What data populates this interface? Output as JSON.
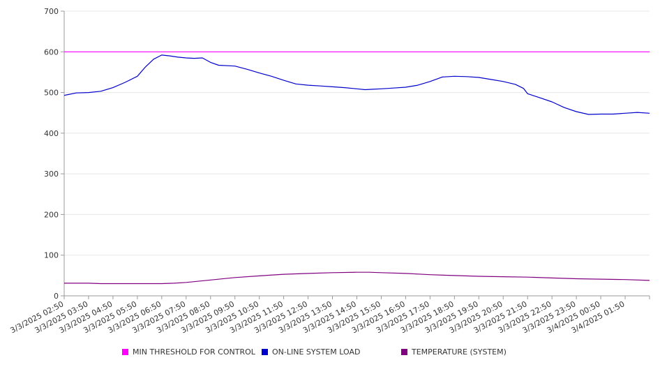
{
  "chart_data": {
    "type": "line",
    "title": "",
    "xlabel": "",
    "ylabel": "",
    "ylim": [
      0,
      700
    ],
    "y_ticks": [
      0,
      100,
      200,
      300,
      400,
      500,
      600,
      700
    ],
    "x_tick_labels": [
      "3/3/2025 02:50",
      "3/3/2025 03:50",
      "3/3/2025 04:50",
      "3/3/2025 05:50",
      "3/3/2025 06:50",
      "3/3/2025 07:50",
      "3/3/2025 08:50",
      "3/3/2025 09:50",
      "3/3/2025 10:50",
      "3/3/2025 11:50",
      "3/3/2025 12:50",
      "3/3/2025 13:50",
      "3/3/2025 14:50",
      "3/3/2025 15:50",
      "3/3/2025 16:50",
      "3/3/2025 17:50",
      "3/3/2025 18:50",
      "3/3/2025 19:50",
      "3/3/2025 20:50",
      "3/3/2025 21:50",
      "3/3/2025 22:50",
      "3/3/2025 23:50",
      "3/4/2025 00:50",
      "3/4/2025 01:50"
    ],
    "x_end": "3/4/2025 02:50",
    "grid": true,
    "legend_position": "bottom",
    "series": [
      {
        "name": "MIN THRESHOLD FOR CONTROL",
        "color": "#ff00ff",
        "points": [
          [
            "3/3/2025 02:50",
            600
          ],
          [
            "3/4/2025 02:50",
            600
          ]
        ]
      },
      {
        "name": "ON-LINE SYSTEM LOAD",
        "color": "#0000cc",
        "points": [
          [
            "3/3/2025 02:50",
            493
          ],
          [
            "3/3/2025 03:00",
            495
          ],
          [
            "3/3/2025 03:20",
            499
          ],
          [
            "3/3/2025 03:50",
            500
          ],
          [
            "3/3/2025 04:20",
            503
          ],
          [
            "3/3/2025 04:50",
            512
          ],
          [
            "3/3/2025 05:20",
            525
          ],
          [
            "3/3/2025 05:50",
            540
          ],
          [
            "3/3/2025 06:10",
            563
          ],
          [
            "3/3/2025 06:30",
            582
          ],
          [
            "3/3/2025 06:50",
            592
          ],
          [
            "3/3/2025 07:10",
            590
          ],
          [
            "3/3/2025 07:30",
            587
          ],
          [
            "3/3/2025 07:50",
            585
          ],
          [
            "3/3/2025 08:10",
            584
          ],
          [
            "3/3/2025 08:30",
            585
          ],
          [
            "3/3/2025 08:50",
            574
          ],
          [
            "3/3/2025 09:10",
            567
          ],
          [
            "3/3/2025 09:50",
            565
          ],
          [
            "3/3/2025 10:20",
            557
          ],
          [
            "3/3/2025 10:50",
            548
          ],
          [
            "3/3/2025 11:20",
            540
          ],
          [
            "3/3/2025 11:50",
            530
          ],
          [
            "3/3/2025 12:20",
            521
          ],
          [
            "3/3/2025 12:50",
            518
          ],
          [
            "3/3/2025 13:20",
            516
          ],
          [
            "3/3/2025 13:50",
            514
          ],
          [
            "3/3/2025 14:20",
            512
          ],
          [
            "3/3/2025 14:50",
            509
          ],
          [
            "3/3/2025 15:10",
            507
          ],
          [
            "3/3/2025 15:30",
            508
          ],
          [
            "3/3/2025 15:50",
            509
          ],
          [
            "3/3/2025 16:20",
            511
          ],
          [
            "3/3/2025 16:50",
            513
          ],
          [
            "3/3/2025 17:20",
            518
          ],
          [
            "3/3/2025 17:50",
            527
          ],
          [
            "3/3/2025 18:20",
            538
          ],
          [
            "3/3/2025 18:50",
            540
          ],
          [
            "3/3/2025 19:20",
            539
          ],
          [
            "3/3/2025 19:50",
            537
          ],
          [
            "3/3/2025 20:20",
            532
          ],
          [
            "3/3/2025 20:50",
            527
          ],
          [
            "3/3/2025 21:20",
            520
          ],
          [
            "3/3/2025 21:40",
            510
          ],
          [
            "3/3/2025 21:50",
            497
          ],
          [
            "3/3/2025 22:20",
            487
          ],
          [
            "3/3/2025 22:50",
            477
          ],
          [
            "3/3/2025 23:20",
            463
          ],
          [
            "3/3/2025 23:50",
            453
          ],
          [
            "3/4/2025 00:20",
            446
          ],
          [
            "3/4/2025 00:50",
            447
          ],
          [
            "3/4/2025 01:20",
            447
          ],
          [
            "3/4/2025 01:50",
            449
          ],
          [
            "3/4/2025 02:20",
            451
          ],
          [
            "3/4/2025 02:50",
            449
          ]
        ]
      },
      {
        "name": "TEMPERATURE (SYSTEM)",
        "color": "#800080",
        "points": [
          [
            "3/3/2025 02:50",
            31
          ],
          [
            "3/3/2025 03:50",
            31
          ],
          [
            "3/3/2025 04:20",
            30
          ],
          [
            "3/3/2025 05:50",
            30
          ],
          [
            "3/3/2025 06:50",
            30
          ],
          [
            "3/3/2025 07:20",
            31
          ],
          [
            "3/3/2025 07:50",
            33
          ],
          [
            "3/3/2025 08:50",
            39
          ],
          [
            "3/3/2025 09:50",
            45
          ],
          [
            "3/3/2025 10:50",
            49
          ],
          [
            "3/3/2025 11:50",
            53
          ],
          [
            "3/3/2025 12:50",
            55
          ],
          [
            "3/3/2025 13:50",
            57
          ],
          [
            "3/3/2025 14:50",
            58
          ],
          [
            "3/3/2025 15:20",
            58
          ],
          [
            "3/3/2025 15:50",
            57
          ],
          [
            "3/3/2025 16:50",
            55
          ],
          [
            "3/3/2025 17:50",
            52
          ],
          [
            "3/3/2025 18:50",
            50
          ],
          [
            "3/3/2025 19:50",
            48
          ],
          [
            "3/3/2025 20:50",
            47
          ],
          [
            "3/3/2025 21:50",
            46
          ],
          [
            "3/3/2025 22:50",
            44
          ],
          [
            "3/3/2025 23:50",
            42
          ],
          [
            "3/4/2025 00:50",
            41
          ],
          [
            "3/4/2025 01:50",
            40
          ],
          [
            "3/4/2025 02:50",
            38
          ]
        ]
      }
    ]
  }
}
